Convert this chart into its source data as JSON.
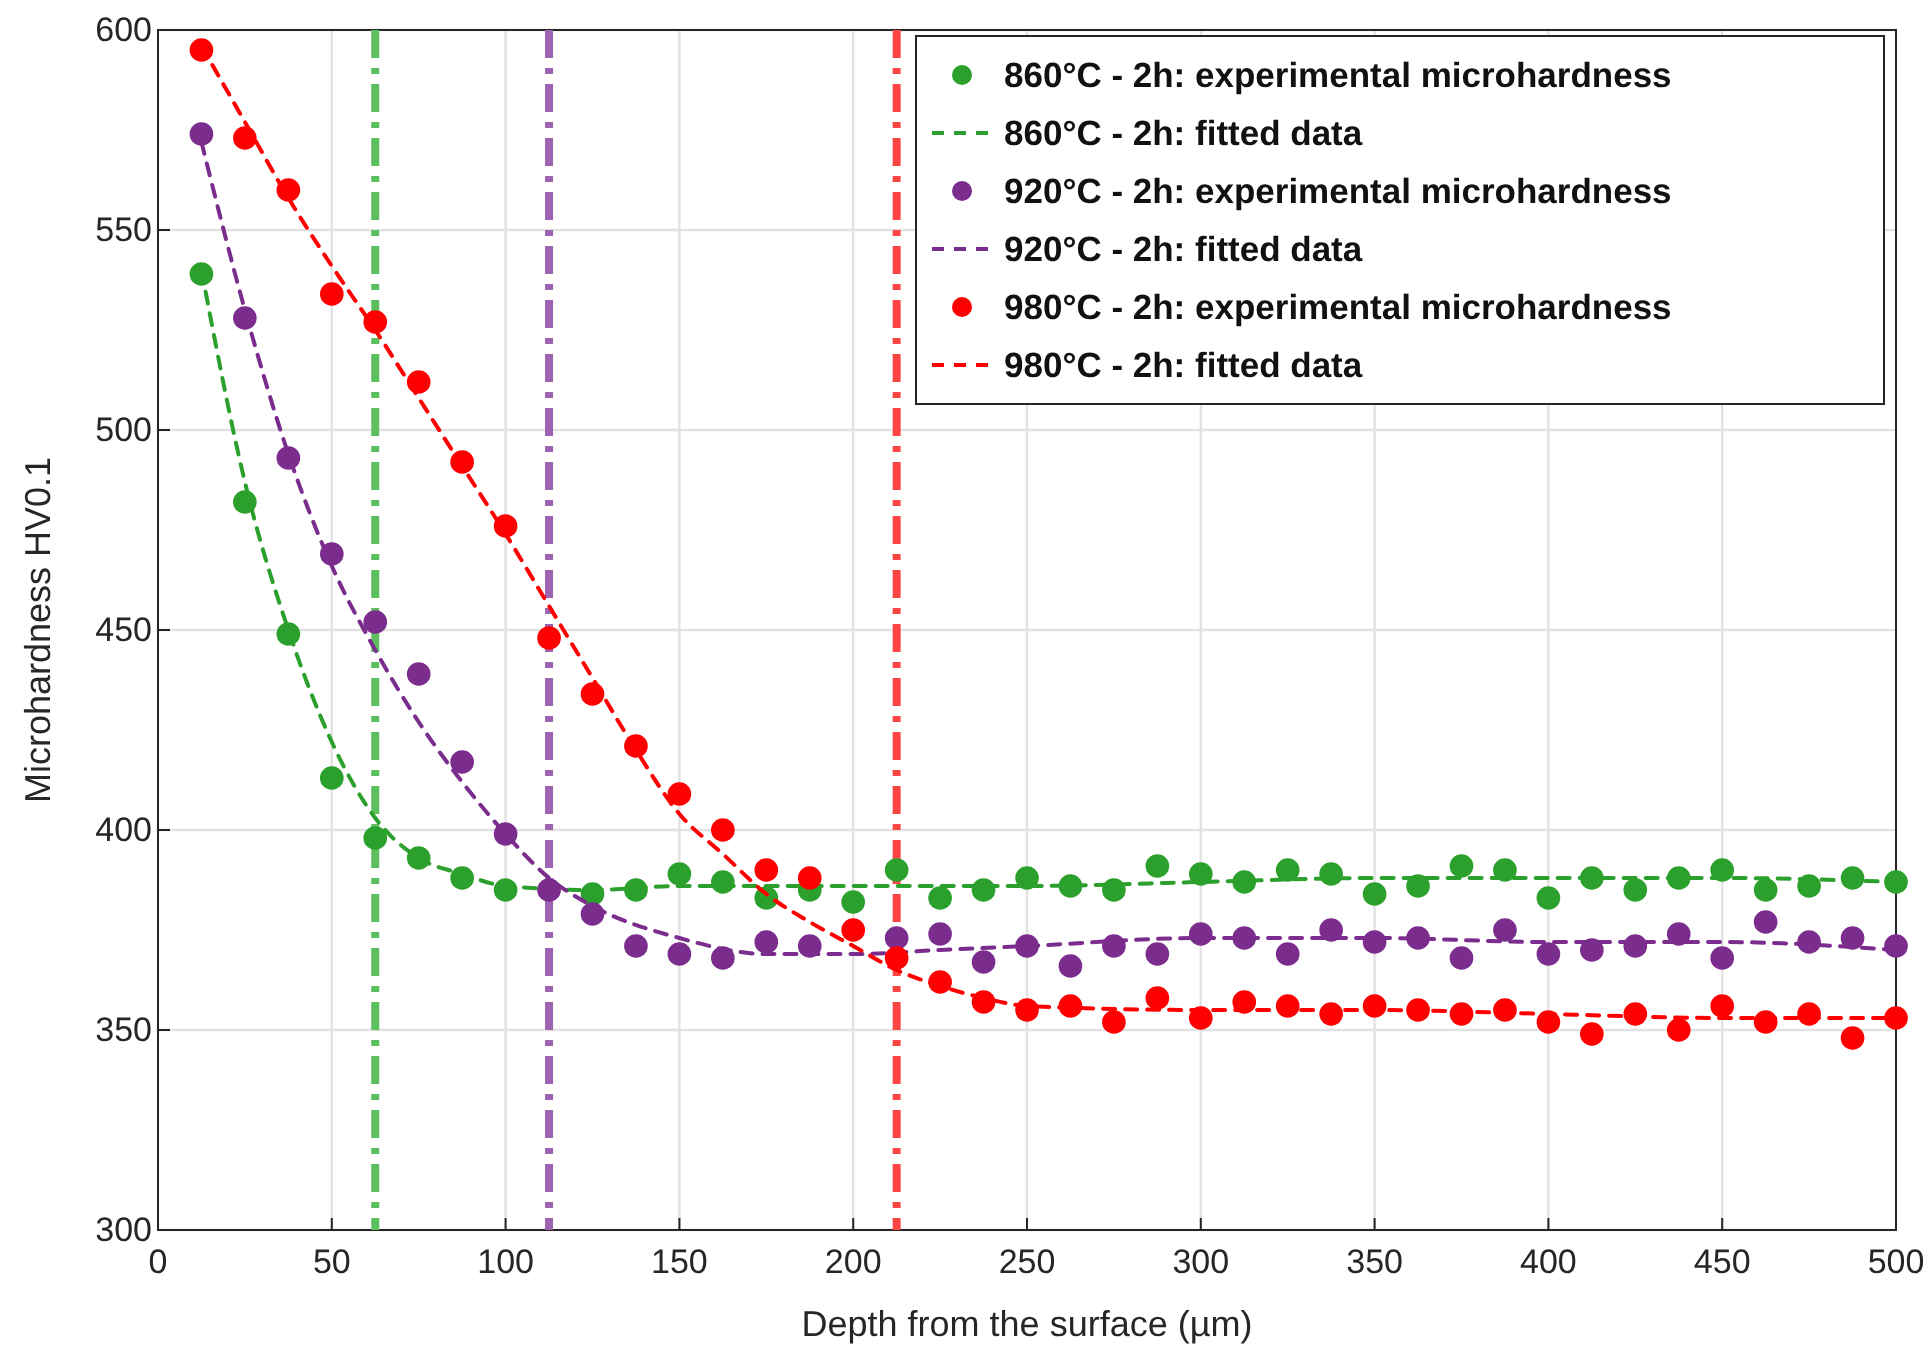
{
  "chart_data": {
    "type": "scatter",
    "xlabel": "Depth from the surface (µm)",
    "ylabel": "Microhardness HV0.1",
    "x": [
      12.5,
      25,
      37.5,
      50,
      62.5,
      75,
      87.5,
      100,
      112.5,
      125,
      137.5,
      150,
      162.5,
      175,
      187.5,
      200,
      212.5,
      225,
      237.5,
      250,
      262.5,
      275,
      287.5,
      300,
      312.5,
      325,
      337.5,
      350,
      362.5,
      375,
      387.5,
      400,
      412.5,
      425,
      437.5,
      450,
      462.5,
      475,
      487.5,
      500
    ],
    "series": [
      {
        "name": "860°C - 2h: experimental microhardness",
        "marker": "circle",
        "color": "#2ca02c",
        "values": [
          539,
          482,
          449,
          413,
          398,
          393,
          388,
          385,
          null,
          384,
          385,
          389,
          387,
          383,
          385,
          382,
          390,
          383,
          385,
          388,
          386,
          385,
          391,
          389,
          387,
          390,
          389,
          384,
          386,
          391,
          390,
          383,
          388,
          385,
          388,
          390,
          385,
          386,
          388,
          387
        ]
      },
      {
        "name": "860°C - 2h: fitted data",
        "type": "line",
        "line_style": "dashed",
        "marker": "none",
        "color": "#2ca02c",
        "x": [
          12.5,
          25,
          37.5,
          50,
          62.5,
          75,
          87.5,
          100,
          125,
          150,
          200,
          250,
          300,
          350,
          400,
          450,
          500
        ],
        "values": [
          540,
          487,
          450,
          422,
          403,
          393,
          389,
          386,
          385,
          386,
          386,
          386,
          387,
          388,
          388,
          388,
          387
        ]
      },
      {
        "name": "920°C - 2h: experimental microhardness",
        "marker": "circle",
        "color": "#7b2d8e",
        "values": [
          574,
          528,
          493,
          469,
          452,
          439,
          417,
          399,
          385,
          379,
          371,
          369,
          368,
          372,
          371,
          null,
          373,
          374,
          367,
          371,
          366,
          371,
          369,
          374,
          373,
          369,
          375,
          372,
          373,
          368,
          375,
          369,
          370,
          371,
          374,
          368,
          377,
          372,
          373,
          371
        ]
      },
      {
        "name": "920°C - 2h: fitted data",
        "type": "line",
        "line_style": "dashed",
        "marker": "none",
        "color": "#7b2d8e",
        "x": [
          12.5,
          25,
          37.5,
          50,
          62.5,
          75,
          87.5,
          100,
          112.5,
          125,
          150,
          175,
          200,
          225,
          250,
          300,
          350,
          400,
          450,
          500
        ],
        "values": [
          572,
          530,
          494,
          466,
          445,
          427,
          412,
          399,
          388,
          381,
          373,
          369,
          369,
          370,
          371,
          373,
          373,
          372,
          372,
          370
        ]
      },
      {
        "name": "980°C - 2h: experimental microhardness",
        "marker": "circle",
        "color": "#ff0000",
        "values": [
          595,
          573,
          560,
          534,
          527,
          512,
          492,
          476,
          448,
          434,
          421,
          409,
          400,
          390,
          388,
          375,
          368,
          362,
          357,
          355,
          356,
          352,
          358,
          353,
          357,
          356,
          354,
          356,
          355,
          354,
          355,
          352,
          349,
          354,
          350,
          356,
          352,
          354,
          348,
          353
        ]
      },
      {
        "name": "980°C - 2h: fitted data",
        "type": "line",
        "line_style": "dashed",
        "marker": "none",
        "color": "#ff0000",
        "x": [
          12.5,
          25,
          37.5,
          50,
          62.5,
          75,
          87.5,
          100,
          112.5,
          125,
          137.5,
          150,
          162.5,
          175,
          187.5,
          200,
          212.5,
          225,
          237.5,
          250,
          300,
          350,
          400,
          450,
          500
        ],
        "values": [
          596,
          577,
          558,
          541,
          525,
          508,
          491,
          474,
          456,
          438,
          420,
          404,
          394,
          384,
          377,
          371,
          365,
          361,
          358,
          356,
          355,
          355,
          354,
          353,
          353
        ]
      }
    ],
    "ref_lines": [
      {
        "axis": "x",
        "value": 62.5,
        "color": "#5dbf5d",
        "line_style": "dashdot"
      },
      {
        "axis": "x",
        "value": 112.5,
        "color": "#9d62b0",
        "line_style": "dashdot"
      },
      {
        "axis": "x",
        "value": 212.5,
        "color": "#ff4444",
        "line_style": "dashdot"
      }
    ],
    "xlim": [
      0,
      500
    ],
    "xticks": [
      0,
      50,
      100,
      150,
      200,
      250,
      300,
      350,
      400,
      450,
      500
    ],
    "ylim": [
      300,
      600
    ],
    "yticks": [
      300,
      350,
      400,
      450,
      500,
      550,
      600
    ],
    "grid": true,
    "legend": "top right"
  }
}
